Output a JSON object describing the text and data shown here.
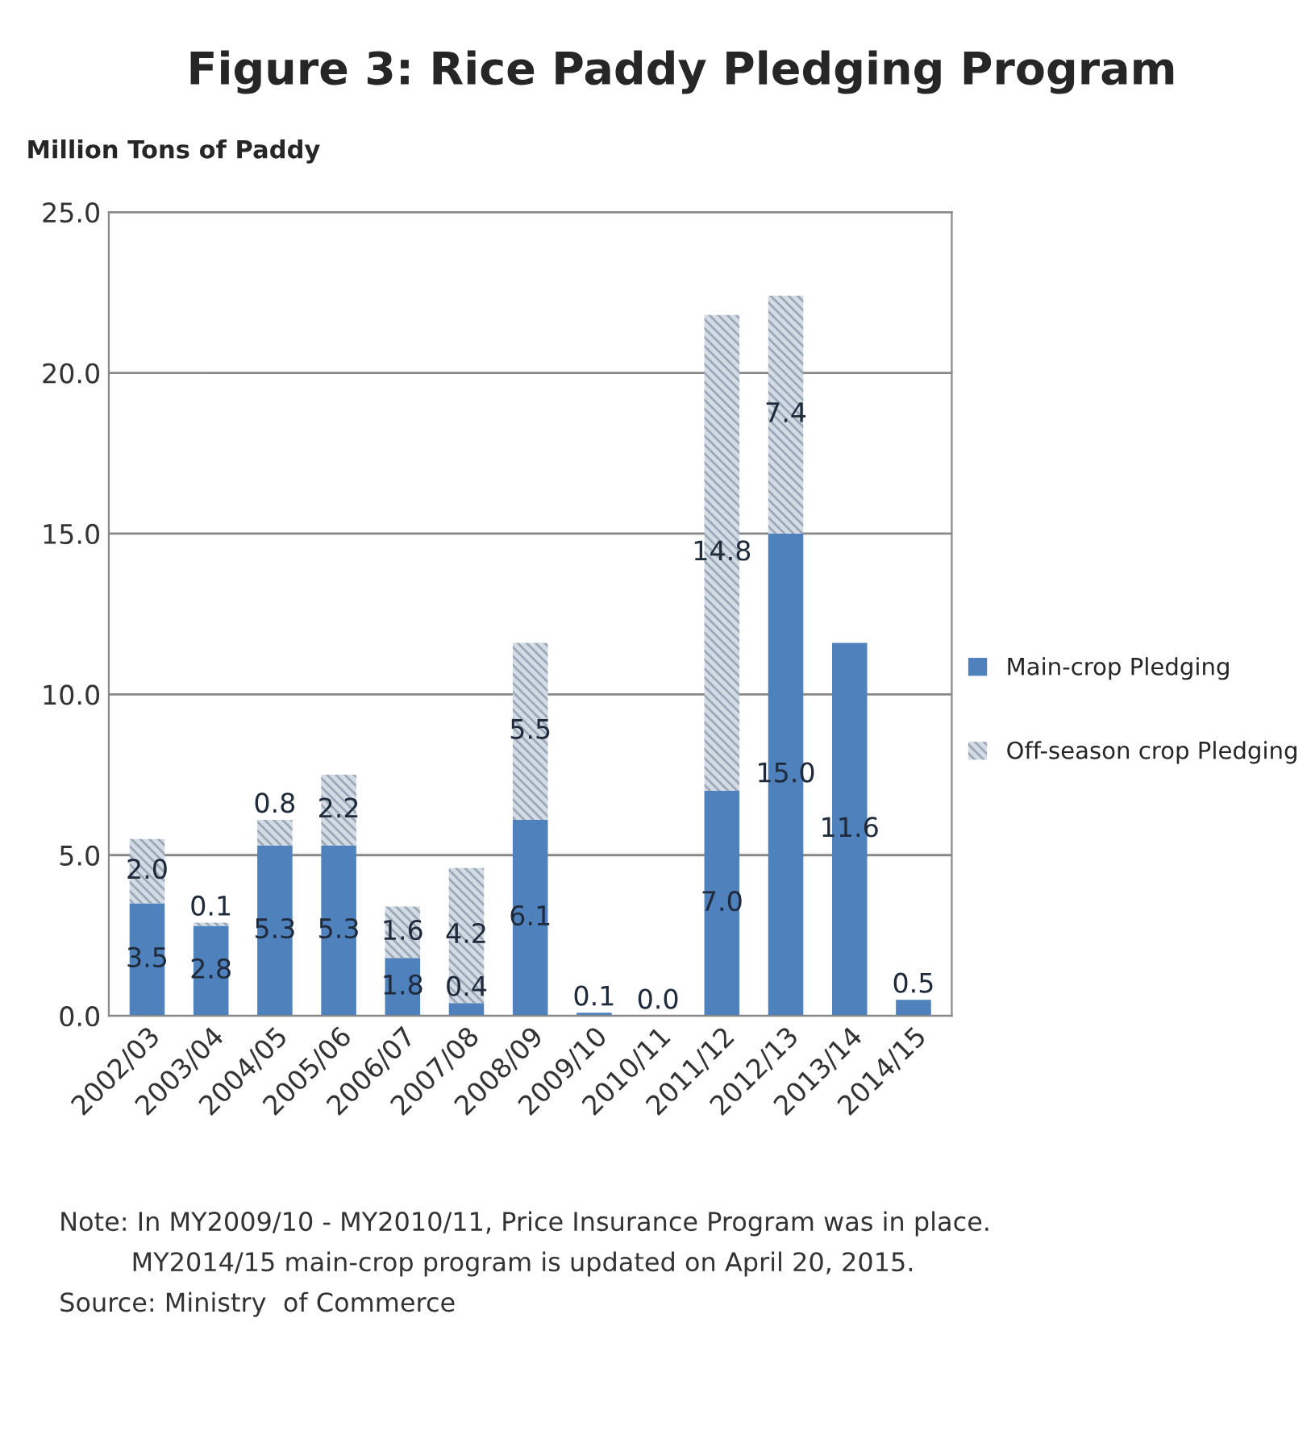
{
  "chart_data": {
    "type": "bar",
    "title": "Figure 3: Rice Paddy Pledging Program",
    "ylabel": "Million Tons of Paddy",
    "categories": [
      "2002/03",
      "2003/04",
      "2004/05",
      "2005/06",
      "2006/07",
      "2007/08",
      "2008/09",
      "2009/10",
      "2010/11",
      "2011/12",
      "2012/13",
      "2013/14",
      "2014/15"
    ],
    "series": [
      {
        "name": "Main-crop Pledging",
        "color": "#4f81bd",
        "values": [
          3.5,
          2.8,
          5.3,
          5.3,
          1.8,
          0.4,
          6.1,
          0.1,
          0.0,
          7.0,
          15.0,
          11.6,
          0.5
        ],
        "value_labels": [
          "3.5",
          "2.8",
          "5.3",
          "5.3",
          "1.8",
          "0.4",
          "6.1",
          "0.1",
          "0.0",
          "7.0",
          "15.0",
          "11.6",
          "0.5"
        ]
      },
      {
        "name": "Off-season crop Pledging",
        "color": "#d3dbe4",
        "values": [
          2.0,
          0.1,
          0.8,
          2.2,
          1.6,
          4.2,
          5.5,
          null,
          null,
          14.8,
          7.4,
          null,
          null
        ],
        "value_labels": [
          "2.0",
          "0.1",
          "0.8",
          "2.2",
          "1.6",
          "4.2",
          "5.5",
          null,
          null,
          "14.8",
          "7.4",
          null,
          null
        ]
      }
    ],
    "stacked": true,
    "ylim": [
      0,
      25
    ],
    "yticks": [
      {
        "value": 0,
        "label": "0.0"
      },
      {
        "value": 5,
        "label": "5.0"
      },
      {
        "value": 10,
        "label": "10.0"
      },
      {
        "value": 15,
        "label": "15.0"
      },
      {
        "value": 20,
        "label": "20.0"
      },
      {
        "value": 25,
        "label": "25.0"
      }
    ],
    "grid": "y",
    "legend": "right",
    "annotations": [
      "Note: In MY2009/10 - MY2010/11, Price Insurance Program was in place.",
      "MY2014/15 main-crop program is updated on April 20, 2015.",
      "Source: Ministry  of Commerce"
    ]
  }
}
